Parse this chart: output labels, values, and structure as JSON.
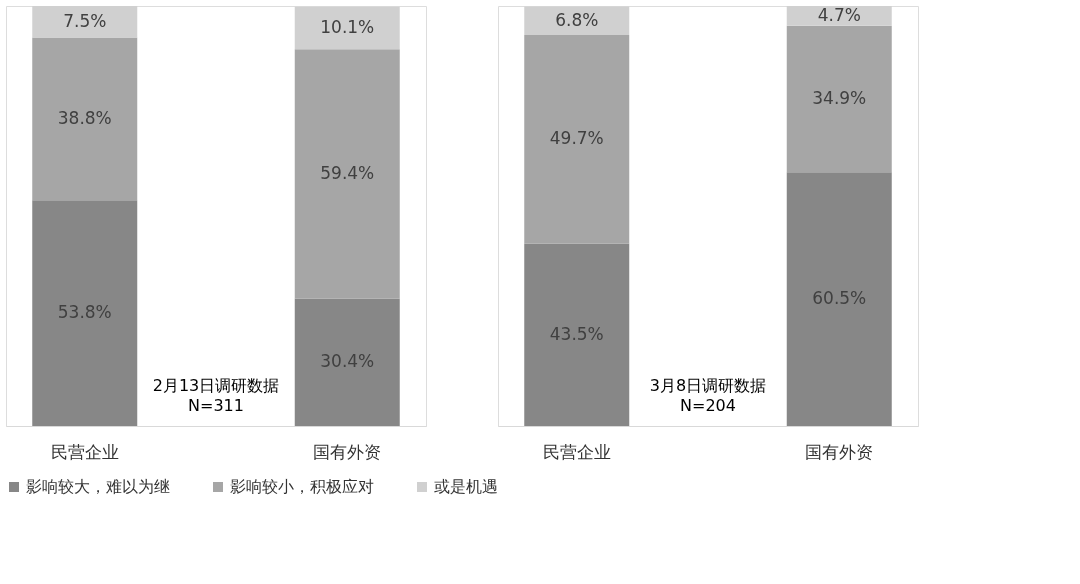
{
  "chart_data": [
    {
      "type": "bar",
      "stacked": true,
      "tick_labels": "x",
      "grid": false,
      "legend": "bottom",
      "categories": [
        "民营企业",
        "国有外资"
      ],
      "series": [
        {
          "name": "影响较大，难以为继",
          "color": "#878787",
          "values": [
            53.8,
            30.4
          ],
          "value_labels": [
            "53.8%",
            "30.4%"
          ]
        },
        {
          "name": "影响较小，积极应对",
          "color": "#a6a6a6",
          "values": [
            38.8,
            59.4
          ],
          "value_labels": [
            "38.8%",
            "59.4%"
          ]
        },
        {
          "name": "或是机遇",
          "color": "#d0d0d0",
          "values": [
            7.5,
            10.1
          ],
          "value_labels": [
            "7.5%",
            "10.1%"
          ]
        }
      ],
      "annotations": [
        "2月13日调研数据\nN=311"
      ]
    },
    {
      "type": "bar",
      "stacked": true,
      "tick_labels": "x",
      "grid": false,
      "legend": "bottom",
      "categories": [
        "民营企业",
        "国有外资"
      ],
      "series": [
        {
          "name": "影响较大，难以为继",
          "color": "#878787",
          "values": [
            43.5,
            60.5
          ],
          "value_labels": [
            "43.5%",
            "60.5%"
          ]
        },
        {
          "name": "影响较小，积极应对",
          "color": "#a6a6a6",
          "values": [
            49.7,
            34.9
          ],
          "value_labels": [
            "49.7%",
            "34.9%"
          ]
        },
        {
          "name": "或是机遇",
          "color": "#d0d0d0",
          "values": [
            6.8,
            4.7
          ],
          "value_labels": [
            "6.8%",
            "4.7%"
          ]
        }
      ],
      "annotations": [
        "3月8日调研数据\nN=204"
      ]
    }
  ]
}
